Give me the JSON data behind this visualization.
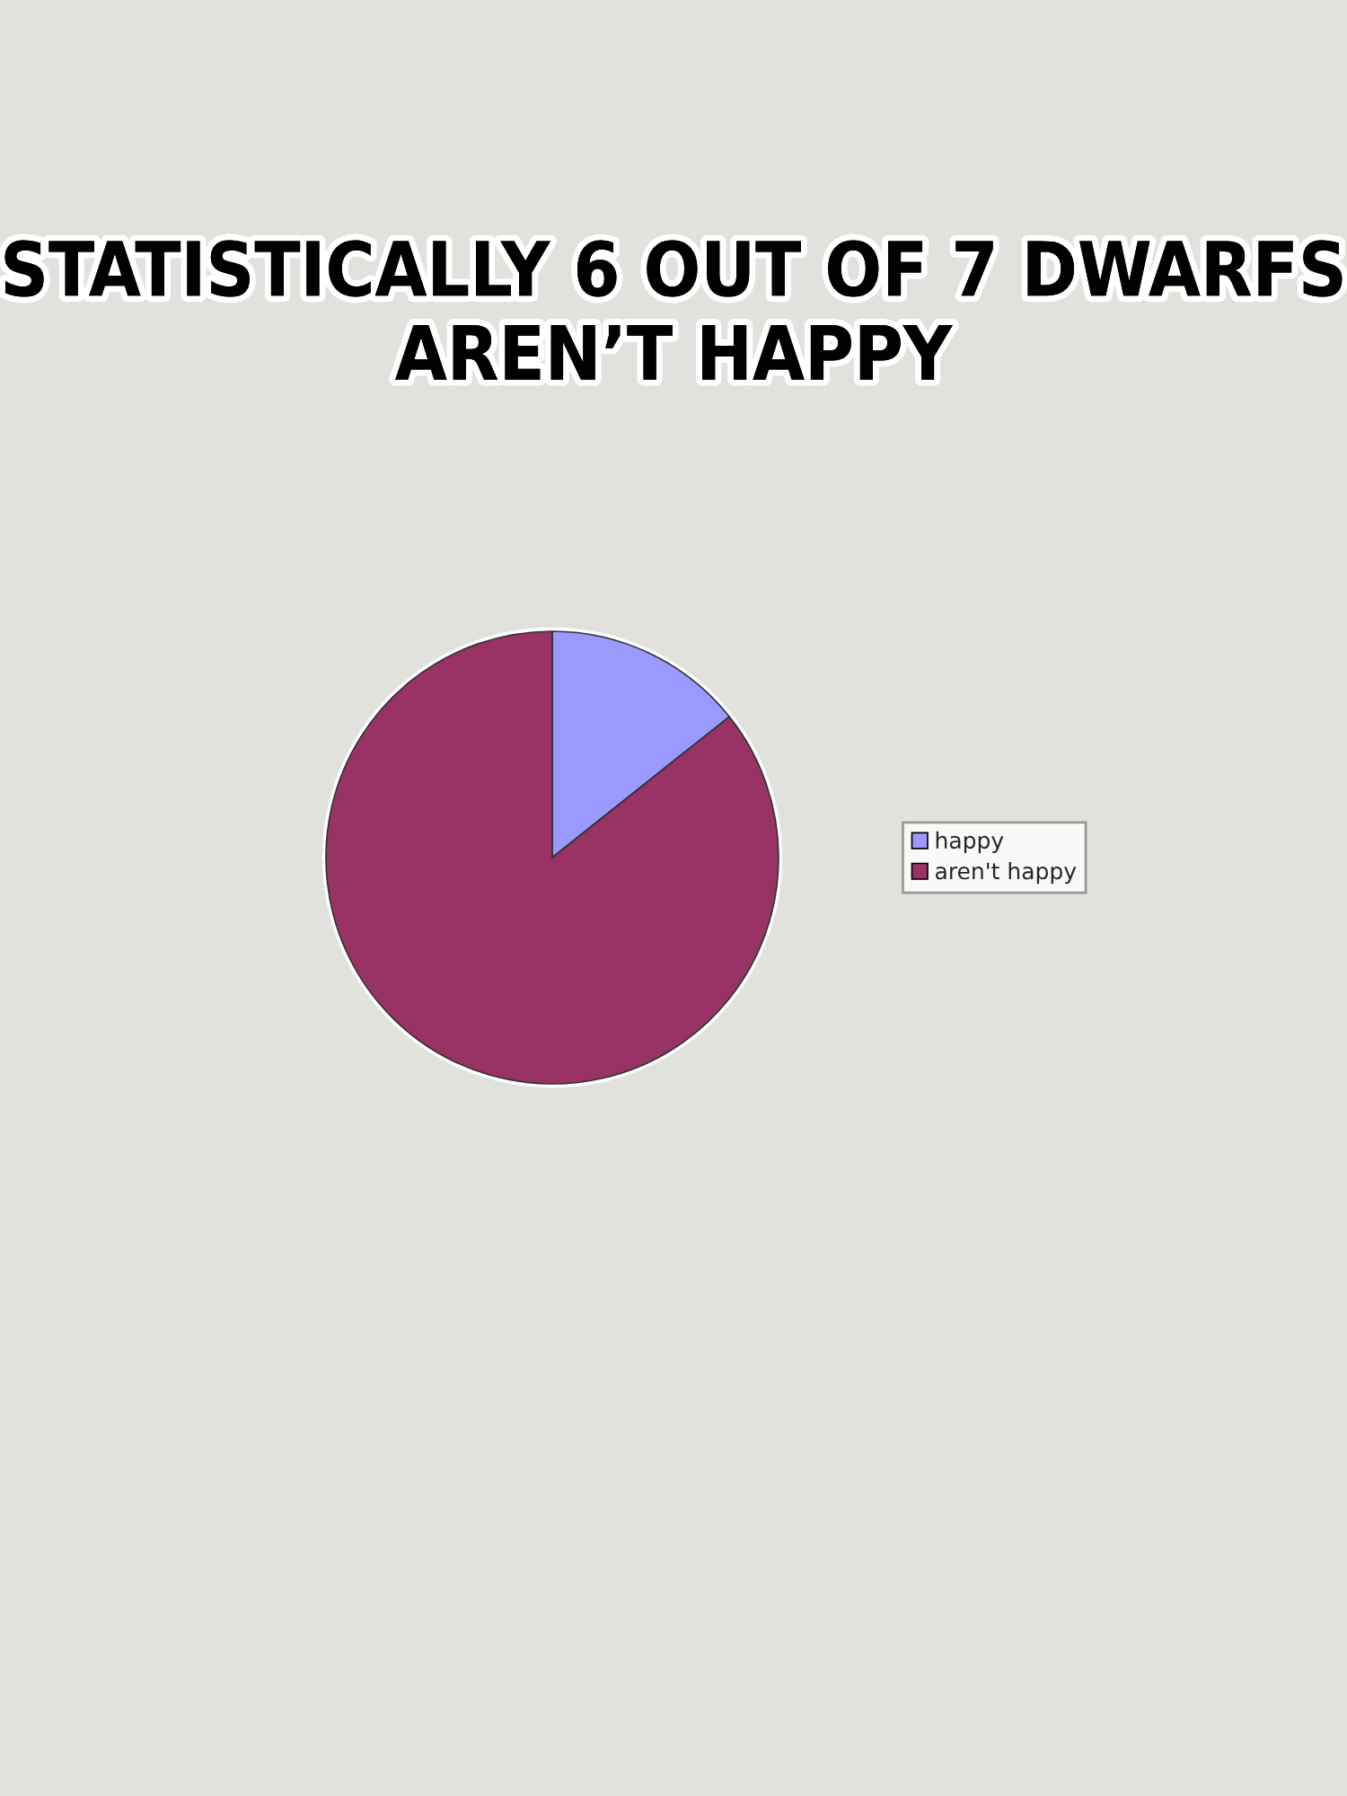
{
  "chart_data": {
    "type": "pie",
    "title": "STATISTICALLY 6 OUT OF 7 DWARFS\nAREN’T HAPPY",
    "categories": [
      "happy",
      "aren't happy"
    ],
    "values": [
      14.3,
      85.7
    ],
    "colors": [
      "#9999ff",
      "#993366"
    ],
    "legend": "right"
  }
}
